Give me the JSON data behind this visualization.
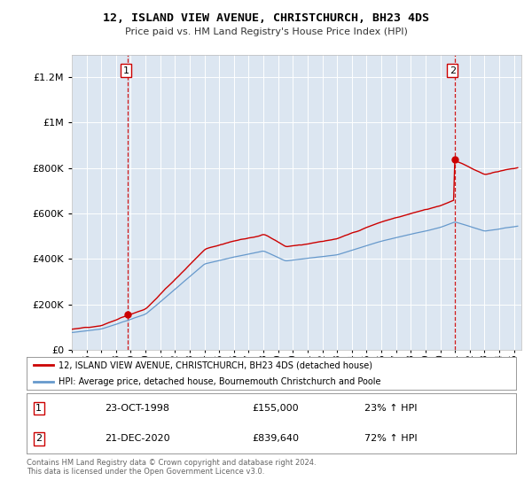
{
  "title": "12, ISLAND VIEW AVENUE, CHRISTCHURCH, BH23 4DS",
  "subtitle": "Price paid vs. HM Land Registry's House Price Index (HPI)",
  "legend_line1": "12, ISLAND VIEW AVENUE, CHRISTCHURCH, BH23 4DS (detached house)",
  "legend_line2": "HPI: Average price, detached house, Bournemouth Christchurch and Poole",
  "sale1_date": "23-OCT-1998",
  "sale1_price": 155000,
  "sale1_hpi": "23% ↑ HPI",
  "sale2_date": "21-DEC-2020",
  "sale2_price": 839640,
  "sale2_hpi": "72% ↑ HPI",
  "footer": "Contains HM Land Registry data © Crown copyright and database right 2024.\nThis data is licensed under the Open Government Licence v3.0.",
  "background_color": "#dce6f1",
  "line_color_red": "#cc0000",
  "line_color_blue": "#6699cc",
  "ylim": [
    0,
    1300000
  ],
  "yticks": [
    0,
    200000,
    400000,
    600000,
    800000,
    1000000,
    1200000
  ],
  "xlim_start": 1995.0,
  "xlim_end": 2025.5,
  "sale1_t": 1998.81,
  "sale2_t": 2020.97
}
